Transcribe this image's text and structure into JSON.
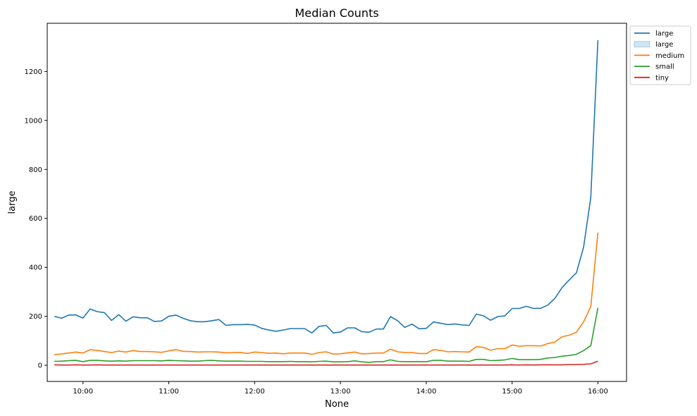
{
  "chart_data": {
    "type": "line",
    "title": "Median Counts",
    "xlabel": "None",
    "ylabel": "large",
    "grid": false,
    "legend_position": "upper-right-outside",
    "x_tick_labels": [
      "10:00",
      "11:00",
      "12:00",
      "13:00",
      "14:00",
      "15:00",
      "16:00"
    ],
    "y_ticks": [
      0,
      200,
      400,
      600,
      800,
      1000,
      1200
    ],
    "xlim": [
      "09:35",
      "16:20"
    ],
    "ylim": [
      -66,
      1397
    ],
    "x": [
      "09:40",
      "09:45",
      "09:50",
      "09:55",
      "10:00",
      "10:05",
      "10:10",
      "10:15",
      "10:20",
      "10:25",
      "10:30",
      "10:35",
      "10:40",
      "10:45",
      "10:50",
      "10:55",
      "11:00",
      "11:05",
      "11:10",
      "11:15",
      "11:20",
      "11:25",
      "11:30",
      "11:35",
      "11:40",
      "11:45",
      "11:50",
      "11:55",
      "12:00",
      "12:05",
      "12:10",
      "12:15",
      "12:20",
      "12:25",
      "12:30",
      "12:35",
      "12:40",
      "12:45",
      "12:50",
      "12:55",
      "13:00",
      "13:05",
      "13:10",
      "13:15",
      "13:20",
      "13:25",
      "13:30",
      "13:35",
      "13:40",
      "13:45",
      "13:50",
      "13:55",
      "14:00",
      "14:05",
      "14:10",
      "14:15",
      "14:20",
      "14:25",
      "14:30",
      "14:35",
      "14:40",
      "14:45",
      "14:50",
      "14:55",
      "15:00",
      "15:05",
      "15:10",
      "15:15",
      "15:20",
      "15:25",
      "15:30",
      "15:35",
      "15:40",
      "15:45",
      "15:50",
      "15:55",
      "16:00"
    ],
    "legend": [
      {
        "label": "large",
        "kind": "line",
        "color": "#1f77b4"
      },
      {
        "label": "large",
        "kind": "patch",
        "color": "#1f77b4"
      },
      {
        "label": "medium",
        "kind": "line",
        "color": "#ff7f0e"
      },
      {
        "label": "small",
        "kind": "line",
        "color": "#2ca02c"
      },
      {
        "label": "tiny",
        "kind": "line",
        "color": "#d62728"
      }
    ],
    "series": [
      {
        "name": "large",
        "color": "#1f77b4",
        "values": [
          200,
          192,
          205,
          206,
          193,
          230,
          219,
          215,
          183,
          207,
          180,
          198,
          194,
          194,
          179,
          181,
          200,
          205,
          192,
          182,
          178,
          178,
          182,
          187,
          163,
          166,
          166,
          167,
          164,
          151,
          144,
          139,
          144,
          150,
          150,
          150,
          132,
          159,
          163,
          132,
          136,
          153,
          153,
          137,
          135,
          148,
          148,
          199,
          182,
          155,
          168,
          149,
          151,
          177,
          172,
          166,
          169,
          165,
          163,
          209,
          202,
          184,
          199,
          202,
          232,
          232,
          241,
          232,
          233,
          246,
          274,
          318,
          349,
          378,
          483,
          686,
          1328
        ]
      },
      {
        "name": "medium",
        "color": "#ff7f0e",
        "values": [
          44,
          46,
          50,
          54,
          50,
          64,
          61,
          56,
          52,
          58,
          54,
          60,
          56,
          56,
          55,
          53,
          59,
          64,
          57,
          56,
          54,
          55,
          55,
          54,
          51,
          52,
          53,
          48,
          54,
          52,
          49,
          50,
          47,
          50,
          50,
          50,
          45,
          52,
          55,
          46,
          47,
          51,
          54,
          47,
          48,
          50,
          50,
          66,
          55,
          52,
          52,
          48,
          48,
          64,
          61,
          55,
          56,
          55,
          54,
          76,
          73,
          62,
          68,
          68,
          83,
          78,
          80,
          80,
          79,
          89,
          95,
          117,
          123,
          135,
          178,
          240,
          542
        ]
      },
      {
        "name": "small",
        "color": "#2ca02c",
        "values": [
          16,
          17,
          19,
          20,
          15,
          20,
          20,
          18,
          17,
          18,
          17,
          19,
          19,
          19,
          19,
          18,
          20,
          19,
          18,
          17,
          17,
          19,
          20,
          18,
          17,
          17,
          17,
          16,
          16,
          16,
          15,
          15,
          15,
          16,
          15,
          15,
          14,
          16,
          17,
          14,
          14,
          15,
          18,
          14,
          12,
          15,
          15,
          22,
          16,
          15,
          15,
          15,
          15,
          20,
          20,
          17,
          17,
          17,
          16,
          24,
          24,
          19,
          20,
          22,
          28,
          23,
          23,
          23,
          24,
          30,
          32,
          37,
          40,
          45,
          60,
          80,
          235
        ]
      },
      {
        "name": "tiny",
        "color": "#d62728",
        "values": [
          2,
          1,
          1,
          2,
          1,
          1,
          2,
          1,
          1,
          1,
          1,
          1,
          1,
          1,
          1,
          1,
          1,
          1,
          1,
          1,
          1,
          1,
          1,
          1,
          1,
          1,
          1,
          1,
          1,
          1,
          1,
          1,
          1,
          1,
          1,
          1,
          1,
          1,
          1,
          1,
          1,
          1,
          1,
          1,
          1,
          1,
          1,
          1,
          1,
          1,
          1,
          1,
          1,
          1,
          1,
          1,
          1,
          1,
          1,
          1,
          1,
          1,
          1,
          1,
          2,
          1,
          2,
          1,
          2,
          2,
          2,
          2,
          3,
          3,
          4,
          6,
          17
        ]
      }
    ]
  }
}
